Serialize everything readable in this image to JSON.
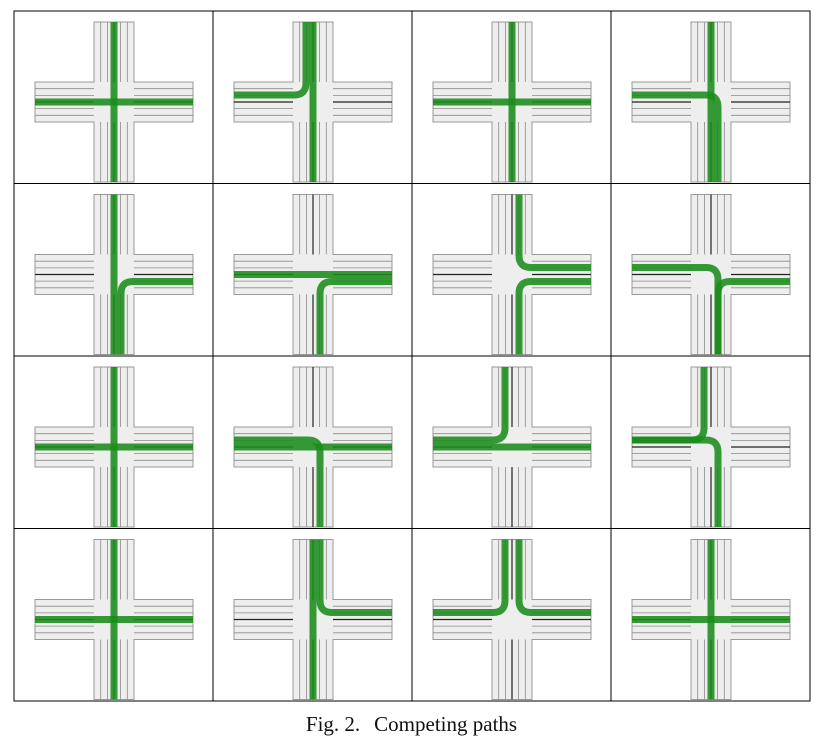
{
  "figure": {
    "caption_label": "Fig. 2.",
    "caption_text": "Competing paths",
    "colors": {
      "road": "#eeeeee",
      "road_edge": "#9a9a9a",
      "lane_line": "#8a8a8a",
      "center_line": "#222222",
      "path": "#1a8c1a",
      "grid": "#000000",
      "background": "#ffffff"
    },
    "grid_rows": 4,
    "grid_cols": 4,
    "panels": [
      {
        "row": 1,
        "col": 1,
        "paths": [
          "north-south",
          "west-east"
        ]
      },
      {
        "row": 1,
        "col": 2,
        "paths": [
          "north-west",
          "north-south"
        ]
      },
      {
        "row": 1,
        "col": 3,
        "paths": [
          "west-east",
          "north-south"
        ]
      },
      {
        "row": 1,
        "col": 4,
        "paths": [
          "north-south",
          "west-south"
        ]
      },
      {
        "row": 2,
        "col": 1,
        "paths": [
          "north-south",
          "south-east"
        ]
      },
      {
        "row": 2,
        "col": 2,
        "paths": [
          "west-east",
          "south-east"
        ]
      },
      {
        "row": 2,
        "col": 3,
        "paths": [
          "north-east",
          "south-east"
        ]
      },
      {
        "row": 2,
        "col": 4,
        "paths": [
          "west-south",
          "south-east"
        ]
      },
      {
        "row": 3,
        "col": 1,
        "paths": [
          "north-south",
          "west-east"
        ]
      },
      {
        "row": 3,
        "col": 2,
        "paths": [
          "west-south",
          "west-east"
        ]
      },
      {
        "row": 3,
        "col": 3,
        "paths": [
          "north-west",
          "west-east"
        ]
      },
      {
        "row": 3,
        "col": 4,
        "paths": [
          "north-west",
          "west-south"
        ]
      },
      {
        "row": 4,
        "col": 1,
        "paths": [
          "north-south",
          "west-east"
        ]
      },
      {
        "row": 4,
        "col": 2,
        "paths": [
          "north-east",
          "north-south"
        ]
      },
      {
        "row": 4,
        "col": 3,
        "paths": [
          "north-west",
          "north-east"
        ]
      },
      {
        "row": 4,
        "col": 4,
        "paths": [
          "north-south",
          "west-east"
        ]
      }
    ]
  }
}
